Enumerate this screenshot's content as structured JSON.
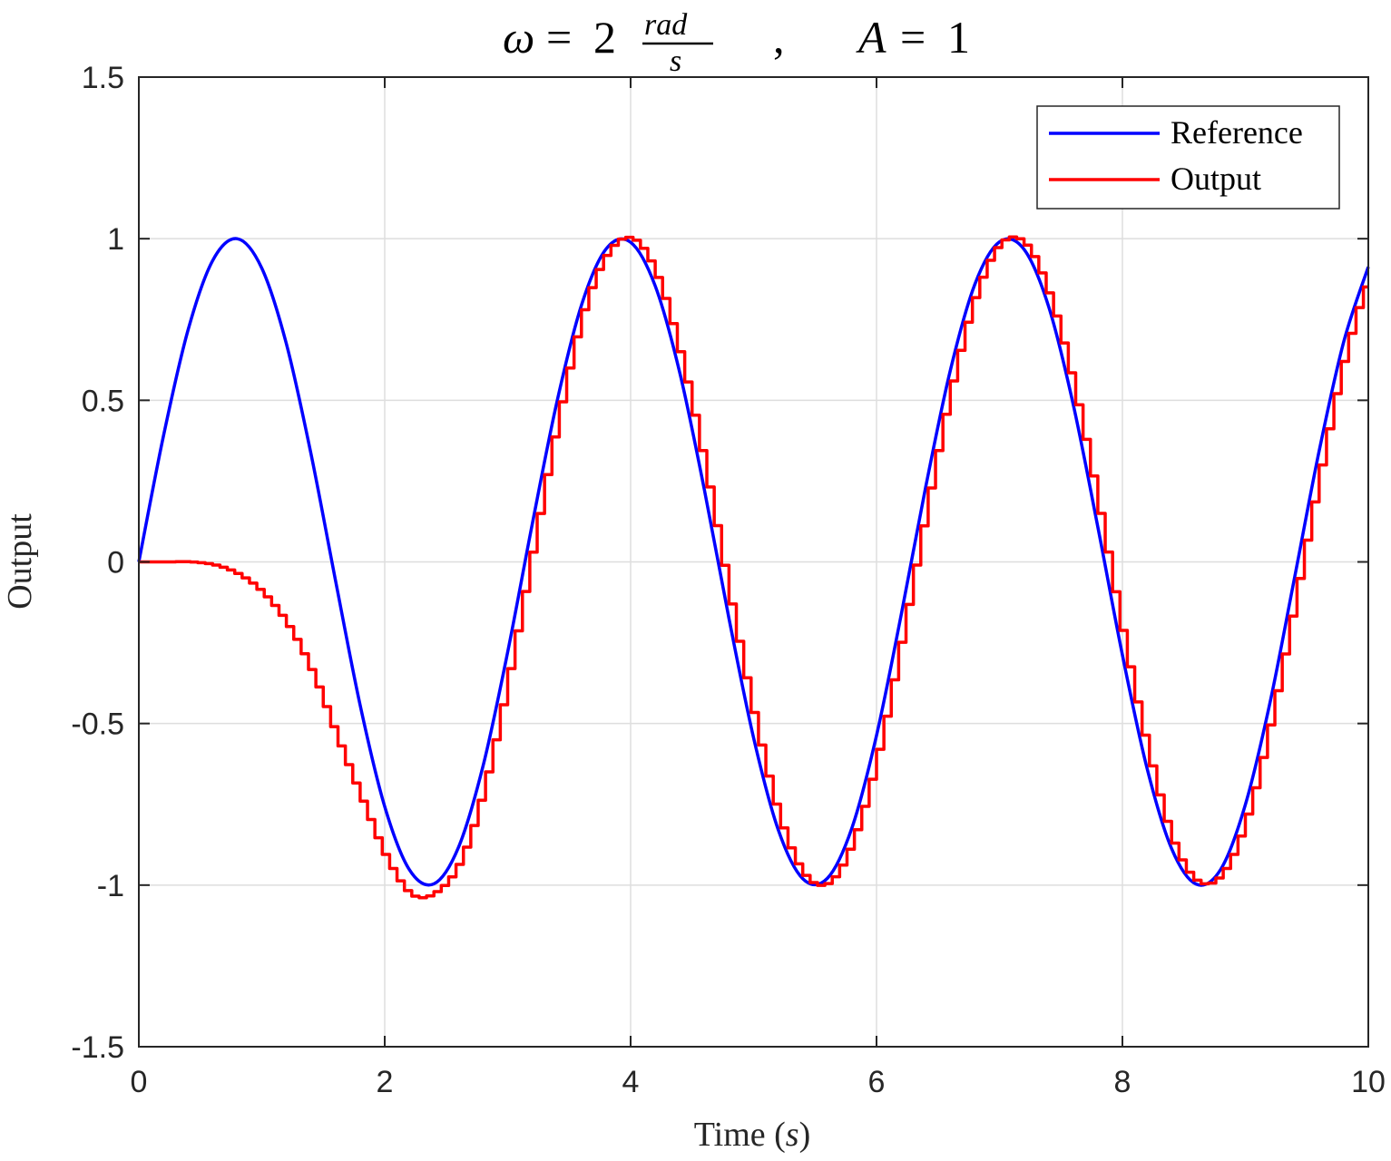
{
  "chart_data": {
    "type": "line",
    "title": {
      "omega_symbol": "ω",
      "equals": "=",
      "omega_value": "2",
      "unit_numerator": "rad",
      "unit_denominator": "s",
      "separator": ",",
      "amp_symbol": "A",
      "amp_value": "1"
    },
    "xlabel": {
      "main": "Time (",
      "unit": "s",
      "close": ")"
    },
    "ylabel": "Output",
    "xlim": [
      0,
      10
    ],
    "ylim": [
      -1.5,
      1.5
    ],
    "xticks": [
      0,
      2,
      4,
      6,
      8,
      10
    ],
    "xtick_labels": [
      "0",
      "2",
      "4",
      "6",
      "8",
      "10"
    ],
    "yticks": [
      -1.5,
      -1,
      -0.5,
      0,
      0.5,
      1,
      1.5
    ],
    "ytick_labels": [
      "-1.5",
      "-1",
      "-0.5",
      "0",
      "0.5",
      "1",
      "1.5"
    ],
    "grid": true,
    "legend_position": "top-right",
    "series": [
      {
        "name": "Reference",
        "color": "#0000ff",
        "x": [
          0,
          0.2,
          0.4,
          0.6,
          0.8,
          1.0,
          1.2,
          1.4,
          1.6,
          1.8,
          2.0,
          2.2,
          2.4,
          2.6,
          2.8,
          3.0,
          3.2,
          3.4,
          3.6,
          3.8,
          4.0,
          4.2,
          4.4,
          4.6,
          4.8,
          5.0,
          5.2,
          5.4,
          5.6,
          5.8,
          6.0,
          6.2,
          6.4,
          6.6,
          6.8,
          7.0,
          7.2,
          7.4,
          7.6,
          7.8,
          8.0,
          8.2,
          8.4,
          8.6,
          8.8,
          9.0,
          9.2,
          9.4,
          9.6,
          9.8,
          10.0
        ],
        "values": [
          0.0,
          0.389,
          0.717,
          0.932,
          1.0,
          0.909,
          0.675,
          0.335,
          -0.058,
          -0.443,
          -0.757,
          -0.952,
          -0.996,
          -0.883,
          -0.631,
          -0.279,
          0.117,
          0.494,
          0.794,
          0.968,
          0.989,
          0.854,
          0.585,
          0.223,
          -0.175,
          -0.544,
          -0.828,
          -0.98,
          -0.979,
          -0.823,
          -0.537,
          -0.165,
          0.232,
          0.592,
          0.859,
          0.99,
          0.967,
          0.79,
          0.487,
          0.108,
          -0.288,
          -0.638,
          -0.887,
          -0.997,
          -0.951,
          -0.751,
          -0.436,
          -0.049,
          0.343,
          0.681,
          0.913
        ]
      },
      {
        "name": "Output",
        "color": "#ff0000",
        "step": true,
        "x": [
          0,
          0.2,
          0.4,
          0.6,
          0.8,
          1.0,
          1.2,
          1.4,
          1.6,
          1.8,
          2.0,
          2.2,
          2.4,
          2.6,
          2.8,
          3.0,
          3.2,
          3.4,
          3.6,
          3.8,
          4.0,
          4.2,
          4.4,
          4.6,
          4.8,
          5.0,
          5.2,
          5.4,
          5.6,
          5.8,
          6.0,
          6.2,
          6.4,
          6.6,
          6.8,
          7.0,
          7.2,
          7.4,
          7.6,
          7.8,
          8.0,
          8.2,
          8.4,
          8.6,
          8.8,
          9.0,
          9.2,
          9.4,
          9.6,
          9.8,
          10.0
        ],
        "values": [
          0.0,
          0.0,
          0.0,
          -0.01,
          -0.04,
          -0.1,
          -0.2,
          -0.35,
          -0.55,
          -0.74,
          -0.92,
          -1.03,
          -1.02,
          -0.92,
          -0.68,
          -0.33,
          0.07,
          0.46,
          0.78,
          0.96,
          1.0,
          0.88,
          0.62,
          0.27,
          -0.13,
          -0.5,
          -0.8,
          -0.97,
          -0.99,
          -0.85,
          -0.58,
          -0.21,
          0.19,
          0.56,
          0.84,
          0.99,
          0.98,
          0.81,
          0.52,
          0.15,
          -0.25,
          -0.6,
          -0.87,
          -0.99,
          -0.96,
          -0.78,
          -0.47,
          -0.09,
          0.3,
          0.65,
          0.88
        ]
      }
    ]
  }
}
